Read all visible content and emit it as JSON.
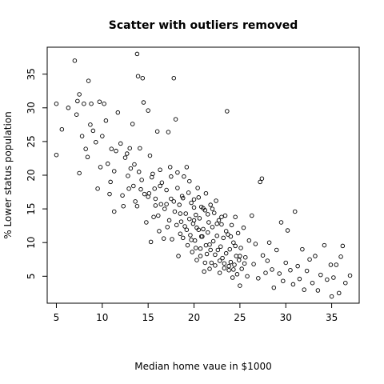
{
  "chart_data": {
    "type": "scatter",
    "title": "Scatter with outliers removed",
    "xlabel": "Median home vaue in $1000",
    "ylabel": "% Lower status population",
    "xlim": [
      4,
      38
    ],
    "ylim": [
      1,
      39
    ],
    "xticks": [
      5,
      10,
      15,
      20,
      25,
      30,
      35
    ],
    "yticks": [
      5,
      10,
      15,
      20,
      25,
      30,
      35
    ],
    "grid": false,
    "point_color": "#000000",
    "points": [
      [
        5.0,
        30.6
      ],
      [
        5.0,
        23.0
      ],
      [
        5.6,
        26.8
      ],
      [
        6.3,
        30.0
      ],
      [
        7.0,
        37.0
      ],
      [
        7.2,
        29.0
      ],
      [
        7.3,
        31.0
      ],
      [
        7.5,
        32.0
      ],
      [
        7.5,
        20.3
      ],
      [
        7.8,
        25.8
      ],
      [
        8.0,
        30.6
      ],
      [
        8.2,
        23.9
      ],
      [
        8.4,
        22.7
      ],
      [
        8.5,
        34.0
      ],
      [
        8.7,
        27.5
      ],
      [
        8.8,
        30.6
      ],
      [
        9.0,
        26.6
      ],
      [
        9.3,
        24.9
      ],
      [
        9.5,
        18.0
      ],
      [
        9.7,
        30.9
      ],
      [
        9.8,
        21.2
      ],
      [
        10.0,
        25.8
      ],
      [
        10.2,
        30.6
      ],
      [
        10.4,
        28.1
      ],
      [
        10.6,
        21.7
      ],
      [
        10.8,
        17.2
      ],
      [
        11.0,
        23.9
      ],
      [
        11.3,
        20.6
      ],
      [
        11.5,
        23.6
      ],
      [
        11.7,
        29.3
      ],
      [
        12.0,
        24.7
      ],
      [
        12.2,
        17.0
      ],
      [
        12.5,
        22.6
      ],
      [
        12.7,
        23.2
      ],
      [
        12.8,
        19.9
      ],
      [
        13.0,
        24.0
      ],
      [
        13.1,
        21.0
      ],
      [
        13.3,
        27.6
      ],
      [
        13.4,
        18.4
      ],
      [
        13.6,
        16.1
      ],
      [
        13.8,
        38.0
      ],
      [
        13.9,
        34.7
      ],
      [
        14.1,
        24.0
      ],
      [
        14.3,
        19.3
      ],
      [
        14.4,
        34.4
      ],
      [
        14.5,
        30.8
      ],
      [
        14.6,
        17.2
      ],
      [
        14.8,
        13.0
      ],
      [
        15.0,
        29.6
      ],
      [
        15.1,
        17.3
      ],
      [
        15.2,
        22.9
      ],
      [
        15.3,
        10.1
      ],
      [
        15.4,
        19.7
      ],
      [
        15.6,
        13.8
      ],
      [
        15.7,
        18.0
      ],
      [
        15.8,
        16.5
      ],
      [
        16.0,
        26.5
      ],
      [
        16.1,
        14.0
      ],
      [
        16.2,
        11.7
      ],
      [
        16.4,
        15.7
      ],
      [
        16.5,
        18.9
      ],
      [
        16.7,
        10.6
      ],
      [
        16.8,
        15.0
      ],
      [
        17.0,
        15.7
      ],
      [
        17.1,
        12.3
      ],
      [
        17.2,
        26.4
      ],
      [
        17.3,
        13.3
      ],
      [
        17.4,
        21.2
      ],
      [
        17.5,
        16.5
      ],
      [
        17.6,
        10.5
      ],
      [
        17.8,
        34.4
      ],
      [
        17.9,
        14.6
      ],
      [
        18.0,
        28.3
      ],
      [
        18.1,
        12.6
      ],
      [
        18.2,
        18.1
      ],
      [
        18.3,
        8.0
      ],
      [
        18.4,
        15.6
      ],
      [
        18.5,
        11.3
      ],
      [
        18.6,
        13.1
      ],
      [
        18.7,
        16.9
      ],
      [
        18.8,
        10.7
      ],
      [
        18.9,
        19.8
      ],
      [
        19.0,
        12.4
      ],
      [
        19.1,
        14.3
      ],
      [
        19.2,
        21.2
      ],
      [
        19.3,
        9.6
      ],
      [
        19.4,
        17.4
      ],
      [
        19.5,
        13.5
      ],
      [
        19.6,
        11.1
      ],
      [
        19.7,
        15.9
      ],
      [
        19.8,
        8.6
      ],
      [
        19.9,
        12.8
      ],
      [
        20.0,
        16.4
      ],
      [
        20.1,
        10.3
      ],
      [
        20.2,
        14.1
      ],
      [
        20.3,
        7.4
      ],
      [
        20.4,
        18.1
      ],
      [
        20.5,
        11.9
      ],
      [
        20.6,
        13.6
      ],
      [
        20.7,
        9.1
      ],
      [
        20.8,
        15.3
      ],
      [
        20.9,
        10.9
      ],
      [
        21.0,
        12.0
      ],
      [
        21.1,
        5.7
      ],
      [
        21.2,
        14.8
      ],
      [
        21.3,
        17.3
      ],
      [
        21.4,
        8.3
      ],
      [
        21.5,
        11.5
      ],
      [
        21.6,
        13.0
      ],
      [
        21.7,
        9.7
      ],
      [
        21.8,
        15.6
      ],
      [
        21.9,
        7.0
      ],
      [
        22.0,
        12.3
      ],
      [
        22.1,
        10.2
      ],
      [
        22.2,
        14.4
      ],
      [
        22.3,
        6.6
      ],
      [
        22.4,
        16.2
      ],
      [
        22.5,
        11.0
      ],
      [
        22.6,
        8.9
      ],
      [
        22.7,
        13.3
      ],
      [
        22.8,
        5.5
      ],
      [
        22.9,
        9.4
      ],
      [
        23.0,
        12.7
      ],
      [
        23.1,
        7.7
      ],
      [
        23.2,
        10.7
      ],
      [
        23.3,
        6.2
      ],
      [
        23.4,
        14.0
      ],
      [
        23.5,
        8.4
      ],
      [
        23.6,
        29.5
      ],
      [
        23.7,
        11.2
      ],
      [
        23.8,
        5.9
      ],
      [
        23.9,
        9.0
      ],
      [
        24.0,
        7.1
      ],
      [
        24.1,
        12.6
      ],
      [
        24.2,
        4.8
      ],
      [
        24.3,
        10.0
      ],
      [
        24.4,
        6.7
      ],
      [
        24.5,
        13.8
      ],
      [
        24.6,
        8.0
      ],
      [
        24.7,
        5.3
      ],
      [
        24.8,
        11.4
      ],
      [
        24.9,
        7.4
      ],
      [
        25.0,
        3.6
      ],
      [
        25.1,
        9.2
      ],
      [
        25.2,
        6.1
      ],
      [
        25.4,
        12.2
      ],
      [
        25.6,
        7.8
      ],
      [
        25.8,
        5.0
      ],
      [
        26.0,
        10.3
      ],
      [
        26.3,
        14.0
      ],
      [
        26.5,
        6.8
      ],
      [
        26.7,
        9.8
      ],
      [
        27.0,
        4.7
      ],
      [
        27.2,
        19.0
      ],
      [
        27.4,
        19.5
      ],
      [
        27.5,
        8.1
      ],
      [
        27.8,
        5.5
      ],
      [
        28.0,
        7.3
      ],
      [
        28.2,
        10.0
      ],
      [
        28.5,
        6.0
      ],
      [
        28.7,
        3.3
      ],
      [
        29.0,
        8.9
      ],
      [
        29.3,
        5.4
      ],
      [
        29.5,
        13.0
      ],
      [
        29.7,
        4.3
      ],
      [
        30.0,
        7.0
      ],
      [
        30.2,
        11.8
      ],
      [
        30.5,
        5.9
      ],
      [
        30.8,
        3.8
      ],
      [
        31.0,
        14.6
      ],
      [
        31.3,
        6.5
      ],
      [
        31.5,
        4.6
      ],
      [
        31.8,
        9.0
      ],
      [
        32.0,
        3.0
      ],
      [
        32.3,
        5.8
      ],
      [
        32.6,
        7.5
      ],
      [
        32.9,
        4.0
      ],
      [
        33.2,
        8.0
      ],
      [
        33.5,
        2.9
      ],
      [
        33.8,
        5.2
      ],
      [
        34.2,
        9.6
      ],
      [
        34.5,
        4.5
      ],
      [
        34.9,
        6.7
      ],
      [
        35.0,
        2.0
      ],
      [
        35.2,
        4.8
      ],
      [
        35.5,
        6.7
      ],
      [
        35.8,
        2.5
      ],
      [
        36.0,
        7.9
      ],
      [
        36.2,
        9.5
      ],
      [
        36.5,
        4.0
      ],
      [
        37.0,
        5.1
      ],
      [
        14.0,
        20.5
      ],
      [
        13.5,
        21.6
      ],
      [
        15.5,
        20.2
      ],
      [
        16.3,
        20.8
      ],
      [
        17.5,
        19.8
      ],
      [
        18.2,
        20.4
      ],
      [
        18.8,
        16.6
      ],
      [
        19.5,
        19.1
      ],
      [
        20.0,
        15.2
      ],
      [
        20.5,
        16.7
      ],
      [
        21.0,
        15.1
      ],
      [
        21.5,
        14.2
      ],
      [
        22.0,
        15.0
      ],
      [
        22.5,
        12.8
      ],
      [
        23.0,
        13.8
      ],
      [
        23.5,
        11.7
      ],
      [
        24.0,
        10.9
      ],
      [
        24.5,
        9.5
      ],
      [
        25.0,
        8.0
      ],
      [
        25.5,
        6.9
      ],
      [
        20.0,
        13.3
      ],
      [
        20.3,
        12.2
      ],
      [
        20.8,
        10.9
      ],
      [
        21.3,
        9.6
      ],
      [
        21.8,
        8.9
      ],
      [
        22.3,
        8.2
      ],
      [
        22.8,
        7.3
      ],
      [
        23.3,
        6.9
      ],
      [
        23.8,
        6.5
      ],
      [
        24.3,
        6.0
      ],
      [
        19.2,
        11.9
      ],
      [
        19.7,
        10.4
      ],
      [
        20.2,
        9.2
      ],
      [
        20.7,
        8.0
      ],
      [
        21.2,
        7.0
      ],
      [
        21.7,
        6.1
      ],
      [
        18.5,
        14.3
      ],
      [
        17.8,
        16.1
      ],
      [
        17.0,
        17.8
      ],
      [
        16.3,
        18.4
      ],
      [
        15.8,
        15.5
      ],
      [
        15.0,
        16.8
      ],
      [
        14.2,
        17.9
      ],
      [
        13.8,
        15.4
      ],
      [
        12.9,
        18.0
      ],
      [
        12.3,
        15.4
      ],
      [
        11.3,
        14.6
      ],
      [
        10.9,
        19.0
      ]
    ]
  }
}
